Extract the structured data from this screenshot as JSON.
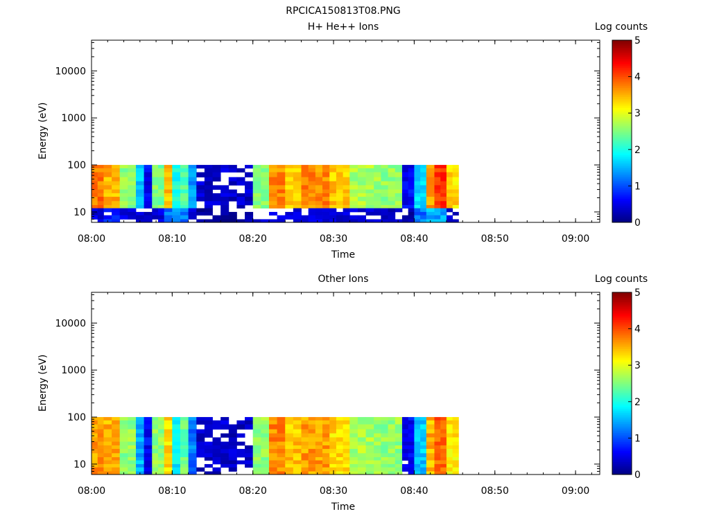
{
  "figure_title": "RPCICA150813T08.PNG",
  "chart_data": [
    {
      "type": "heatmap",
      "title": "H+ He++ Ions",
      "xlabel": "Time",
      "ylabel": "Energy (eV)",
      "x_ticks": [
        "08:00",
        "08:10",
        "08:20",
        "08:30",
        "08:40",
        "08:50",
        "09:00"
      ],
      "y_ticks": [
        "10",
        "100",
        "1000",
        "10000"
      ],
      "y_scale": "log",
      "x_range": [
        "08:00",
        "09:03"
      ],
      "y_range_eV": [
        6,
        45000
      ],
      "data_time_range": [
        "08:00",
        "08:45:30"
      ],
      "data_energy_range_eV": [
        6,
        100
      ],
      "colorbar": {
        "label": "Log counts",
        "ticks": [
          "0",
          "1",
          "2",
          "3",
          "4",
          "5"
        ],
        "range": [
          0,
          5
        ]
      },
      "energy_bands_eV": [
        [
          85,
          100
        ],
        [
          70,
          85
        ],
        [
          55,
          70
        ],
        [
          45,
          55
        ],
        [
          37,
          45
        ],
        [
          30,
          37
        ],
        [
          25,
          30
        ],
        [
          21,
          25
        ],
        [
          17,
          21
        ],
        [
          14,
          17
        ],
        [
          12,
          14
        ],
        [
          10,
          12
        ],
        [
          8.5,
          10
        ],
        [
          7,
          8.5
        ],
        [
          6,
          7
        ]
      ],
      "time_columns": [
        {
          "start": "08:00:00",
          "end": "08:01:30",
          "upper": 3.8,
          "lower": 0.5,
          "pattern": 1
        },
        {
          "start": "08:01:30",
          "end": "08:03:30",
          "upper": 3.5,
          "lower": 0.8,
          "pattern": 2
        },
        {
          "start": "08:03:30",
          "end": "08:05:30",
          "upper": 2.6,
          "lower": 0.5,
          "pattern": 3
        },
        {
          "start": "08:05:30",
          "end": "08:06:30",
          "upper": 1.6,
          "lower": 0.4,
          "pattern": 4
        },
        {
          "start": "08:06:30",
          "end": "08:07:30",
          "upper": 0.6,
          "lower": 0.3,
          "pattern": 5
        },
        {
          "start": "08:07:30",
          "end": "08:09:00",
          "upper": 2.5,
          "lower": 0.5,
          "pattern": 1
        },
        {
          "start": "08:09:00",
          "end": "08:10:00",
          "upper": 3.4,
          "lower": 1.2,
          "pattern": 2
        },
        {
          "start": "08:10:00",
          "end": "08:11:00",
          "upper": 2.0,
          "lower": 1.5,
          "pattern": 0
        },
        {
          "start": "08:11:00",
          "end": "08:12:00",
          "upper": 2.3,
          "lower": 1.2,
          "pattern": 3
        },
        {
          "start": "08:12:00",
          "end": "08:13:00",
          "upper": 1.4,
          "lower": 0.5,
          "pattern": 4
        },
        {
          "start": "08:13:00",
          "end": "08:20:00",
          "upper": 0.45,
          "lower": 0.2,
          "pattern": 9
        },
        {
          "start": "08:20:00",
          "end": "08:22:00",
          "upper": 2.6,
          "lower": 0.5,
          "pattern": 2
        },
        {
          "start": "08:22:00",
          "end": "08:24:00",
          "upper": 3.7,
          "lower": 0.6,
          "pattern": 1
        },
        {
          "start": "08:24:00",
          "end": "08:26:00",
          "upper": 3.4,
          "lower": 0.6,
          "pattern": 3
        },
        {
          "start": "08:26:00",
          "end": "08:29:30",
          "upper": 3.7,
          "lower": 0.5,
          "pattern": 1
        },
        {
          "start": "08:29:30",
          "end": "08:32:00",
          "upper": 3.4,
          "lower": 0.5,
          "pattern": 2
        },
        {
          "start": "08:32:00",
          "end": "08:35:00",
          "upper": 2.7,
          "lower": 0.5,
          "pattern": 3
        },
        {
          "start": "08:35:00",
          "end": "08:38:30",
          "upper": 2.6,
          "lower": 0.4,
          "pattern": 1
        },
        {
          "start": "08:38:30",
          "end": "08:40:00",
          "upper": 0.6,
          "lower": 0.3,
          "pattern": 5
        },
        {
          "start": "08:40:00",
          "end": "08:41:30",
          "upper": 1.7,
          "lower": 1.2,
          "pattern": 4
        },
        {
          "start": "08:41:30",
          "end": "08:42:30",
          "upper": 3.6,
          "lower": 1.5,
          "pattern": 2
        },
        {
          "start": "08:42:30",
          "end": "08:44:00",
          "upper": 4.1,
          "lower": 1.4,
          "pattern": 1
        },
        {
          "start": "08:44:00",
          "end": "08:45:30",
          "upper": 3.3,
          "lower": 0.4,
          "pattern": 3
        }
      ]
    },
    {
      "type": "heatmap",
      "title": "Other Ions",
      "xlabel": "Time",
      "ylabel": "Energy (eV)",
      "x_ticks": [
        "08:00",
        "08:10",
        "08:20",
        "08:30",
        "08:40",
        "08:50",
        "09:00"
      ],
      "y_ticks": [
        "10",
        "100",
        "1000",
        "10000"
      ],
      "y_scale": "log",
      "x_range": [
        "08:00",
        "09:03"
      ],
      "y_range_eV": [
        6,
        45000
      ],
      "data_time_range": [
        "08:00",
        "08:45:30"
      ],
      "data_energy_range_eV": [
        6,
        100
      ],
      "colorbar": {
        "label": "Log counts",
        "ticks": [
          "0",
          "1",
          "2",
          "3",
          "4",
          "5"
        ],
        "range": [
          0,
          5
        ]
      },
      "energy_bands_eV": [
        [
          85,
          100
        ],
        [
          70,
          85
        ],
        [
          55,
          70
        ],
        [
          45,
          55
        ],
        [
          37,
          45
        ],
        [
          30,
          37
        ],
        [
          25,
          30
        ],
        [
          21,
          25
        ],
        [
          17,
          21
        ],
        [
          14,
          17
        ],
        [
          12,
          14
        ],
        [
          10,
          12
        ],
        [
          8.5,
          10
        ],
        [
          7,
          8.5
        ],
        [
          6,
          7
        ]
      ],
      "time_columns": [
        {
          "start": "08:00:00",
          "end": "08:01:30",
          "upper": 3.6,
          "lower": 3.6,
          "pattern": 1
        },
        {
          "start": "08:01:30",
          "end": "08:03:30",
          "upper": 3.5,
          "lower": 3.5,
          "pattern": 2
        },
        {
          "start": "08:03:30",
          "end": "08:05:30",
          "upper": 2.6,
          "lower": 2.6,
          "pattern": 3
        },
        {
          "start": "08:05:30",
          "end": "08:06:30",
          "upper": 1.5,
          "lower": 1.5,
          "pattern": 4
        },
        {
          "start": "08:06:30",
          "end": "08:07:30",
          "upper": 0.6,
          "lower": 0.6,
          "pattern": 5
        },
        {
          "start": "08:07:30",
          "end": "08:09:00",
          "upper": 2.6,
          "lower": 2.6,
          "pattern": 1
        },
        {
          "start": "08:09:00",
          "end": "08:10:00",
          "upper": 3.3,
          "lower": 3.3,
          "pattern": 2
        },
        {
          "start": "08:10:00",
          "end": "08:11:00",
          "upper": 1.8,
          "lower": 1.8,
          "pattern": 0
        },
        {
          "start": "08:11:00",
          "end": "08:12:00",
          "upper": 2.4,
          "lower": 2.4,
          "pattern": 3
        },
        {
          "start": "08:12:00",
          "end": "08:13:00",
          "upper": 1.2,
          "lower": 1.2,
          "pattern": 4
        },
        {
          "start": "08:13:00",
          "end": "08:20:00",
          "upper": 0.45,
          "lower": 0.45,
          "pattern": 9
        },
        {
          "start": "08:20:00",
          "end": "08:22:00",
          "upper": 2.6,
          "lower": 2.6,
          "pattern": 2
        },
        {
          "start": "08:22:00",
          "end": "08:24:00",
          "upper": 3.7,
          "lower": 3.7,
          "pattern": 1
        },
        {
          "start": "08:24:00",
          "end": "08:26:00",
          "upper": 3.4,
          "lower": 3.4,
          "pattern": 3
        },
        {
          "start": "08:26:00",
          "end": "08:29:30",
          "upper": 3.6,
          "lower": 3.6,
          "pattern": 1
        },
        {
          "start": "08:29:30",
          "end": "08:32:00",
          "upper": 3.3,
          "lower": 3.3,
          "pattern": 2
        },
        {
          "start": "08:32:00",
          "end": "08:35:00",
          "upper": 2.7,
          "lower": 2.7,
          "pattern": 3
        },
        {
          "start": "08:35:00",
          "end": "08:38:30",
          "upper": 2.6,
          "lower": 2.6,
          "pattern": 1
        },
        {
          "start": "08:38:30",
          "end": "08:40:00",
          "upper": 0.6,
          "lower": 0.6,
          "pattern": 5
        },
        {
          "start": "08:40:00",
          "end": "08:41:30",
          "upper": 1.6,
          "lower": 1.6,
          "pattern": 4
        },
        {
          "start": "08:41:30",
          "end": "08:42:30",
          "upper": 3.5,
          "lower": 3.5,
          "pattern": 2
        },
        {
          "start": "08:42:30",
          "end": "08:44:00",
          "upper": 3.9,
          "lower": 3.9,
          "pattern": 1
        },
        {
          "start": "08:44:00",
          "end": "08:45:30",
          "upper": 3.2,
          "lower": 3.2,
          "pattern": 3
        }
      ]
    }
  ]
}
